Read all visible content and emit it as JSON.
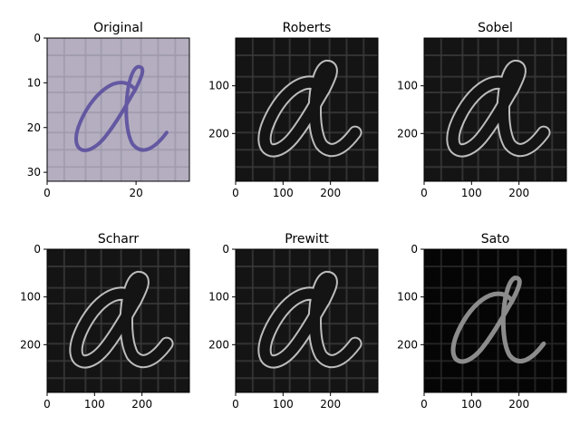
{
  "figure": {
    "panels": [
      {
        "id": "original",
        "title": "Original",
        "image_extent": 32,
        "x_ticks": [
          0,
          20
        ],
        "y_ticks": [
          0,
          10,
          20,
          30
        ],
        "colors": {
          "background": "#b4aec0",
          "grid": "#9f99ad",
          "stroke": "#5b4f9e"
        },
        "stroke_width": 0.9
      },
      {
        "id": "roberts",
        "title": "Roberts",
        "image_extent": 300,
        "x_ticks": [
          0,
          100,
          200
        ],
        "y_ticks": [
          100,
          200
        ],
        "colors": {
          "background": "#141414",
          "grid": "#3a3a3a",
          "stroke": "#d9d9d9"
        },
        "stroke_width": 3
      },
      {
        "id": "sobel",
        "title": "Sobel",
        "image_extent": 300,
        "x_ticks": [
          0,
          100,
          200
        ],
        "y_ticks": [
          100,
          200
        ],
        "colors": {
          "background": "#141414",
          "grid": "#3a3a3a",
          "stroke": "#d9d9d9"
        },
        "stroke_width": 3
      },
      {
        "id": "scharr",
        "title": "Scharr",
        "image_extent": 300,
        "x_ticks": [
          0,
          100,
          200
        ],
        "y_ticks": [
          0,
          100,
          200
        ],
        "colors": {
          "background": "#141414",
          "grid": "#3a3a3a",
          "stroke": "#d9d9d9"
        },
        "stroke_width": 3
      },
      {
        "id": "prewitt",
        "title": "Prewitt",
        "image_extent": 300,
        "x_ticks": [
          0,
          100,
          200
        ],
        "y_ticks": [
          0,
          100,
          200
        ],
        "colors": {
          "background": "#141414",
          "grid": "#3a3a3a",
          "stroke": "#d9d9d9"
        },
        "stroke_width": 3
      },
      {
        "id": "sato",
        "title": "Sato",
        "image_extent": 300,
        "x_ticks": [
          0,
          100,
          200
        ],
        "y_ticks": [
          0,
          100,
          200
        ],
        "colors": {
          "background": "#050505",
          "grid": "#2a2a2a",
          "stroke": "#9a9a9a"
        },
        "stroke_width": 3
      }
    ]
  }
}
